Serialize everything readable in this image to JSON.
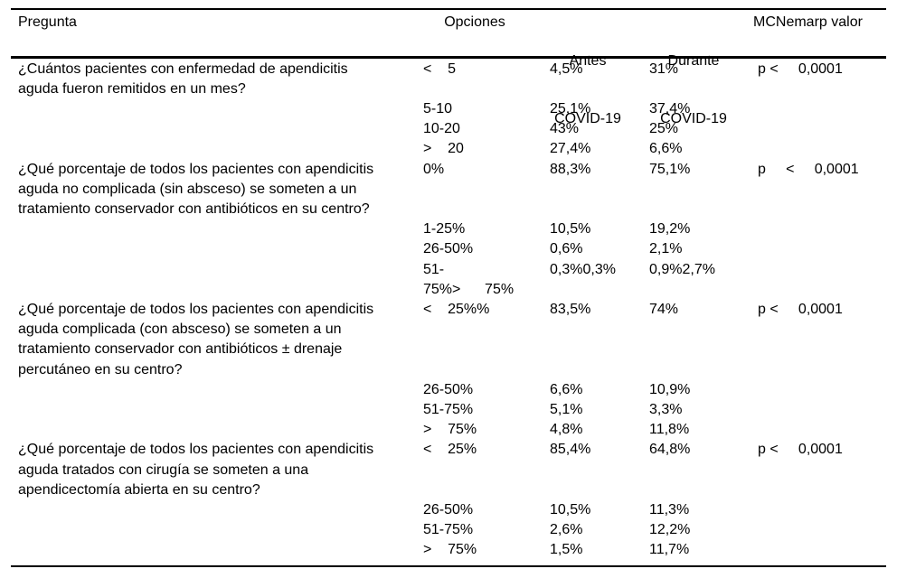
{
  "page": {
    "background": "#ffffff",
    "text_color": "#000000",
    "rule_color": "#000000"
  },
  "table": {
    "header": {
      "pregunta": "Pregunta",
      "opciones": "Opciones",
      "antes": [
        "Antes",
        "COVID-19"
      ],
      "durante": [
        "Durante",
        "COVID-19"
      ],
      "mcnemar": "MCNemarp valor"
    },
    "lines": [
      {
        "pregunta": "¿Cuántos pacientes con enfermedad de apendicitis",
        "opcion": "<    5",
        "antes": "4,5%",
        "durante": "31%",
        "p": "p <     0,0001"
      },
      {
        "pregunta": "aguda fueron remitidos en un mes?"
      },
      {
        "opcion": "5-10",
        "antes": "25,1%",
        "durante": "37,4%"
      },
      {
        "opcion": "10-20",
        "antes": "43%",
        "durante": "25%"
      },
      {
        "opcion": ">    20",
        "antes": "27,4%",
        "durante": "6,6%"
      },
      {
        "pregunta": "¿Qué porcentaje de todos los pacientes con apendicitis",
        "opcion": "0%",
        "antes": "88,3%",
        "durante": "75,1%",
        "p": "p     <     0,0001"
      },
      {
        "pregunta": "aguda no complicada (sin absceso) se someten a un"
      },
      {
        "pregunta": "tratamiento conservador con antibióticos en su centro?"
      },
      {
        "opcion": "1-25%",
        "antes": "10,5%",
        "durante": "19,2%"
      },
      {
        "opcion": "26-50%",
        "antes": "0,6%",
        "durante": "2,1%"
      },
      {
        "opcion": "51-",
        "antes": "0,3%0,3%",
        "durante": "0,9%2,7%"
      },
      {
        "opcion": "75%>      75%"
      },
      {
        "pregunta": "¿Qué porcentaje de todos los pacientes con apendicitis",
        "opcion": "<    25%%",
        "antes": "83,5%",
        "durante": "74%",
        "p": "p <     0,0001"
      },
      {
        "pregunta": "aguda complicada (con absceso) se someten a un"
      },
      {
        "pregunta": "tratamiento conservador con antibióticos ± drenaje"
      },
      {
        "pregunta": "percutáneo en su centro?"
      },
      {
        "opcion": "26-50%",
        "antes": "6,6%",
        "durante": "10,9%"
      },
      {
        "opcion": "51-75%",
        "antes": "5,1%",
        "durante": "3,3%"
      },
      {
        "opcion": ">    75%",
        "antes": "4,8%",
        "durante": "11,8%"
      },
      {
        "pregunta": "¿Qué porcentaje de todos los pacientes con apendicitis",
        "opcion": "<    25%",
        "antes": "85,4%",
        "durante": "64,8%",
        "p": "p <     0,0001"
      },
      {
        "pregunta": "aguda tratados con cirugía se someten a una"
      },
      {
        "pregunta": "apendicectomía abierta en su centro?"
      },
      {
        "opcion": "26-50%",
        "antes": "10,5%",
        "durante": "11,3%"
      },
      {
        "opcion": "51-75%",
        "antes": "2,6%",
        "durante": "12,2%"
      },
      {
        "opcion": ">    75%",
        "antes": "1,5%",
        "durante": "11,7%"
      }
    ]
  }
}
